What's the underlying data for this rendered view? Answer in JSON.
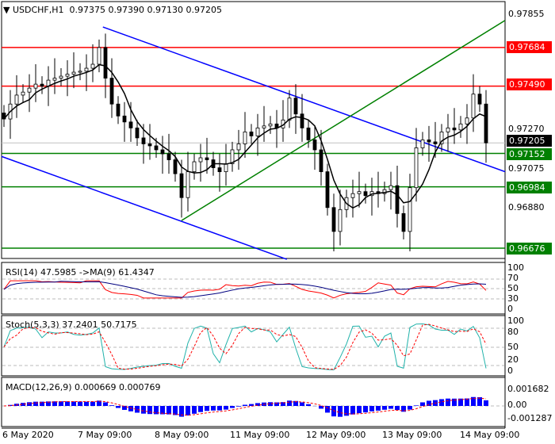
{
  "header": {
    "symbol": "USDCHF,H1",
    "open": "0.97375",
    "high": "0.97390",
    "low": "0.97130",
    "close": "0.97205"
  },
  "price_axis": {
    "ticks": [
      "0.97855",
      "0.97270",
      "0.97075",
      "0.96880"
    ],
    "current": "0.97205"
  },
  "levels": [
    {
      "price": 0.97684,
      "label": "0.97684",
      "color": "#ff0000"
    },
    {
      "price": 0.9749,
      "label": "0.97490",
      "color": "#ff0000"
    },
    {
      "price": 0.97152,
      "label": "0.97152",
      "color": "#008000"
    },
    {
      "price": 0.96984,
      "label": "0.96984",
      "color": "#008000"
    },
    {
      "price": 0.96676,
      "label": "0.96676",
      "color": "#008000"
    }
  ],
  "trendlines": [
    {
      "color": "#0000ff",
      "from_bar": 15.6,
      "from_price": 0.97787,
      "to_bar": 79,
      "to_price": 0.9706
    },
    {
      "color": "#0000ff",
      "from_bar": -0.4,
      "from_price": 0.97137,
      "to_bar": 44.6,
      "to_price": 0.9662
    },
    {
      "color": "#008000",
      "from_bar": 28,
      "from_price": 0.96815,
      "to_bar": 79,
      "to_price": 0.9782
    }
  ],
  "chart_data": {
    "type": "candlestick",
    "closes": [
      0.97325,
      0.974,
      0.97445,
      0.9746,
      0.9748,
      0.975,
      0.9749,
      0.9752,
      0.9753,
      0.9754,
      0.9755,
      0.9756,
      0.97565,
      0.9758,
      0.976,
      0.97684,
      0.9753,
      0.974,
      0.9734,
      0.9731,
      0.9728,
      0.9723,
      0.972,
      0.9719,
      0.9717,
      0.9715,
      0.9712,
      0.9705,
      0.9693,
      0.9706,
      0.9711,
      0.9713,
      0.9712,
      0.9708,
      0.9706,
      0.971,
      0.9717,
      0.972,
      0.9726,
      0.9724,
      0.9728,
      0.9729,
      0.973,
      0.9728,
      0.9732,
      0.9743,
      0.9735,
      0.9728,
      0.9722,
      0.9717,
      0.9706,
      0.9688,
      0.9676,
      0.9687,
      0.9693,
      0.9695,
      0.9696,
      0.9694,
      0.9696,
      0.9695,
      0.9697,
      0.9699,
      0.9685,
      0.9676,
      0.9698,
      0.9718,
      0.9722,
      0.9721,
      0.972,
      0.9726,
      0.9728,
      0.9727,
      0.973,
      0.9733,
      0.9745,
      0.974,
      0.97205
    ],
    "ylim": [
      0.966,
      0.9791
    ],
    "time_labels": [
      "6 May 2020",
      "7 May 09:00",
      "8 May 09:00",
      "11 May 09:00",
      "12 May 09:00",
      "13 May 09:00",
      "14 May 09:00"
    ]
  },
  "rsi": {
    "title": "RSI(14) 47.5985  ->MA(9) 61.4347",
    "ticks": [
      "100",
      "70",
      "50",
      "30",
      "0"
    ]
  },
  "stoch": {
    "title": "Stoch(5,3,3) 37.2401 50.7175",
    "ticks": [
      "100",
      "80",
      "50",
      "20",
      "0"
    ]
  },
  "macd": {
    "title": "MACD(12,26,9) 0.000669 0.000769",
    "ticks": [
      "0.001682",
      "0.00",
      "-0.001287"
    ]
  }
}
